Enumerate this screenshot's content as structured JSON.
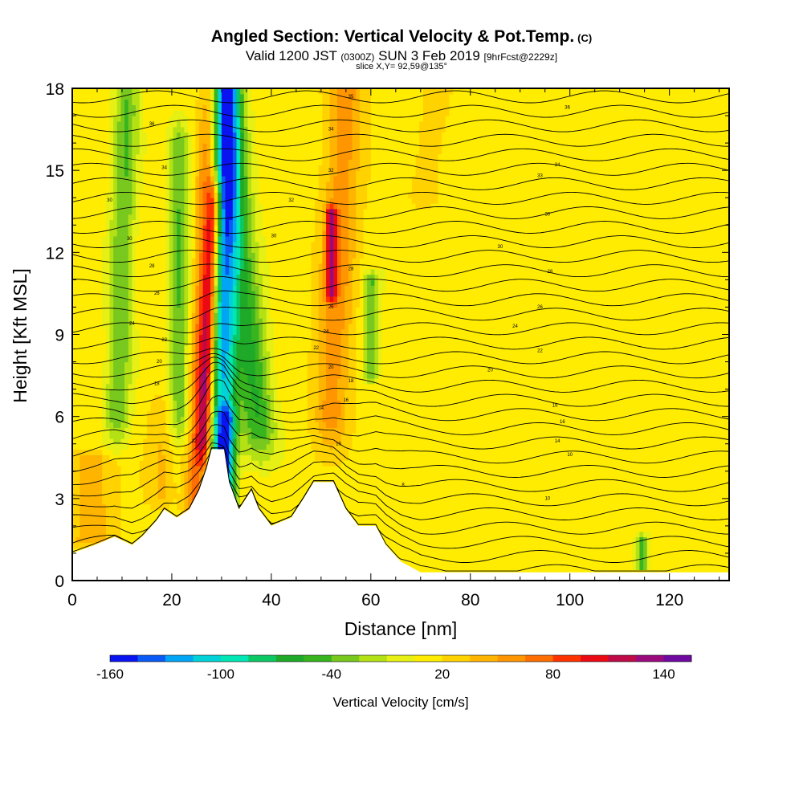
{
  "title": {
    "main": "Angled Section: Vertical Velocity & Pot.Temp.",
    "main_suffix": "(C)",
    "valid_prefix": "Valid 1200 JST",
    "valid_zulu": "(0300Z)",
    "valid_date": "SUN 3 Feb 2019",
    "valid_fcst": "[9hrFcst@2229z]",
    "slice": "slice X,Y= 92,59@135°"
  },
  "chart_data": {
    "type": "heatmap",
    "xlabel": "Distance [nm]",
    "ylabel": "Height [Kft MSL]",
    "xlim": [
      0,
      132
    ],
    "ylim": [
      0,
      18
    ],
    "x_ticks": [
      "0",
      "20",
      "40",
      "60",
      "80",
      "100",
      "120"
    ],
    "y_ticks": [
      "0",
      "3",
      "6",
      "9",
      "12",
      "15",
      "18"
    ],
    "colorbar": {
      "label": "Vertical Velocity [cm/s]",
      "tick_labels": [
        "-160",
        "-100",
        "-40",
        "20",
        "80",
        "140"
      ],
      "bins": [
        -160,
        -145,
        -130,
        -115,
        -100,
        -85,
        -70,
        -55,
        -40,
        -25,
        -10,
        5,
        20,
        35,
        50,
        65,
        80,
        95,
        110,
        125,
        140,
        155
      ],
      "colors": [
        "#0a14f0",
        "#0a5af5",
        "#00a5f5",
        "#00d2d7",
        "#00e6b4",
        "#0cc864",
        "#1eaa28",
        "#37b41e",
        "#78c81e",
        "#b4e114",
        "#e6f014",
        "#ffec00",
        "#ffd200",
        "#ffb400",
        "#ff9600",
        "#ff6e00",
        "#ff3200",
        "#eb0a14",
        "#be0a46",
        "#9b0a7d",
        "#6e0aa0"
      ]
    },
    "velocity_features": [
      {
        "kind": "downdraft",
        "x_center": 30,
        "x_at_top": 31,
        "half_width": 2.6,
        "y_from": 1.8,
        "y_to": 18,
        "value": -110
      },
      {
        "kind": "downdraft",
        "x_center": 37.5,
        "x_at_top": 30.5,
        "half_width": 3.5,
        "y_from": 5.5,
        "y_to": 18,
        "value": -55
      },
      {
        "kind": "downdraft",
        "x_center": 9,
        "x_at_top": 11,
        "half_width": 2.5,
        "y_from": 6,
        "y_to": 18,
        "value": -40
      },
      {
        "kind": "downdraft",
        "x_center": 21.5,
        "x_at_top": 21.5,
        "half_width": 2.2,
        "y_from": 6,
        "y_to": 16,
        "value": -40
      },
      {
        "kind": "downdraft",
        "x_center": 30,
        "x_at_top": 31,
        "half_width": 1.8,
        "y_from": 2,
        "y_to": 6,
        "value": -55
      },
      {
        "kind": "downdraft",
        "x_center": 60,
        "x_at_top": 60,
        "half_width": 1.6,
        "y_from": 7.5,
        "y_to": 11,
        "value": -40
      },
      {
        "kind": "downdraft",
        "x_center": 114.5,
        "x_at_top": 114.5,
        "half_width": 1.2,
        "y_from": 0.5,
        "y_to": 1.6,
        "value": -45
      },
      {
        "kind": "updraft",
        "x_center": 24.5,
        "x_at_top": 28,
        "half_width": 2.2,
        "y_from": 2,
        "y_to": 18,
        "value": 75
      },
      {
        "kind": "updraft",
        "x_center": 26.5,
        "x_at_top": 28.5,
        "half_width": 1.4,
        "y_from": 5,
        "y_to": 14,
        "value": 95
      },
      {
        "kind": "updraft",
        "x_center": 52,
        "x_at_top": 55,
        "half_width": 3.5,
        "y_from": 6,
        "y_to": 18,
        "value": 60
      },
      {
        "kind": "updraft",
        "x_center": 52,
        "x_at_top": 52,
        "half_width": 1.0,
        "y_from": 10.5,
        "y_to": 13.5,
        "value": 95
      },
      {
        "kind": "updraft",
        "x_center": 4,
        "x_at_top": 4,
        "half_width": 4.5,
        "y_from": 1.5,
        "y_to": 4.5,
        "value": 45
      },
      {
        "kind": "updraft",
        "x_center": 18,
        "x_at_top": 18,
        "half_width": 2.5,
        "y_from": 3,
        "y_to": 6.5,
        "value": 35
      },
      {
        "kind": "updraft",
        "x_center": 71,
        "x_at_top": 73,
        "half_width": 3,
        "y_from": 14,
        "y_to": 18,
        "value": 35
      }
    ],
    "terrain_kft": [
      {
        "x": 0,
        "h": 1.0
      },
      {
        "x": 4.5,
        "h": 1.3
      },
      {
        "x": 8.5,
        "h": 1.6
      },
      {
        "x": 12,
        "h": 1.3
      },
      {
        "x": 14,
        "h": 1.6
      },
      {
        "x": 17,
        "h": 2.2
      },
      {
        "x": 18.5,
        "h": 2.6
      },
      {
        "x": 21,
        "h": 2.3
      },
      {
        "x": 23.5,
        "h": 2.6
      },
      {
        "x": 25.5,
        "h": 3.3
      },
      {
        "x": 27,
        "h": 4.1
      },
      {
        "x": 28,
        "h": 4.8
      },
      {
        "x": 30.5,
        "h": 4.8
      },
      {
        "x": 31.5,
        "h": 3.6
      },
      {
        "x": 33.5,
        "h": 2.6
      },
      {
        "x": 36,
        "h": 3.3
      },
      {
        "x": 37.5,
        "h": 2.6
      },
      {
        "x": 40,
        "h": 2.0
      },
      {
        "x": 44,
        "h": 2.3
      },
      {
        "x": 46.5,
        "h": 3.0
      },
      {
        "x": 48.5,
        "h": 3.6
      },
      {
        "x": 52.5,
        "h": 3.6
      },
      {
        "x": 55,
        "h": 2.6
      },
      {
        "x": 57.5,
        "h": 2.0
      },
      {
        "x": 61,
        "h": 2.0
      },
      {
        "x": 63,
        "h": 1.3
      },
      {
        "x": 66,
        "h": 0.7
      },
      {
        "x": 70,
        "h": 0.3
      },
      {
        "x": 132,
        "h": 0.3
      }
    ],
    "isentrope_labels": [
      {
        "x": 56,
        "y": 17.7,
        "text": "35"
      },
      {
        "x": 99.5,
        "y": 17.3,
        "text": "36"
      },
      {
        "x": 16,
        "y": 16.7,
        "text": "36"
      },
      {
        "x": 52,
        "y": 16.5,
        "text": "34"
      },
      {
        "x": 97.5,
        "y": 15.2,
        "text": "34"
      },
      {
        "x": 52,
        "y": 15.0,
        "text": "32"
      },
      {
        "x": 18.5,
        "y": 15.1,
        "text": "34"
      },
      {
        "x": 44,
        "y": 13.9,
        "text": "32"
      },
      {
        "x": 94,
        "y": 14.8,
        "text": "33"
      },
      {
        "x": 7.5,
        "y": 13.9,
        "text": "30"
      },
      {
        "x": 95.5,
        "y": 13.4,
        "text": "30"
      },
      {
        "x": 86,
        "y": 12.2,
        "text": "30"
      },
      {
        "x": 11.5,
        "y": 12.5,
        "text": "30"
      },
      {
        "x": 40.5,
        "y": 12.6,
        "text": "30"
      },
      {
        "x": 56,
        "y": 11.4,
        "text": "28"
      },
      {
        "x": 16,
        "y": 11.5,
        "text": "28"
      },
      {
        "x": 96,
        "y": 11.3,
        "text": "28"
      },
      {
        "x": 17,
        "y": 10.5,
        "text": "26"
      },
      {
        "x": 52,
        "y": 10.0,
        "text": "26"
      },
      {
        "x": 94,
        "y": 10.0,
        "text": "26"
      },
      {
        "x": 12,
        "y": 9.4,
        "text": "24"
      },
      {
        "x": 89,
        "y": 9.3,
        "text": "24"
      },
      {
        "x": 51,
        "y": 9.1,
        "text": "24"
      },
      {
        "x": 18.5,
        "y": 8.8,
        "text": "22"
      },
      {
        "x": 49,
        "y": 8.5,
        "text": "22"
      },
      {
        "x": 94,
        "y": 8.4,
        "text": "22"
      },
      {
        "x": 17.5,
        "y": 8.0,
        "text": "20"
      },
      {
        "x": 52,
        "y": 7.8,
        "text": "20"
      },
      {
        "x": 84,
        "y": 7.7,
        "text": "20"
      },
      {
        "x": 17,
        "y": 7.2,
        "text": "18"
      },
      {
        "x": 56,
        "y": 7.3,
        "text": "18"
      },
      {
        "x": 55,
        "y": 6.6,
        "text": "16"
      },
      {
        "x": 97,
        "y": 6.4,
        "text": "16"
      },
      {
        "x": 50,
        "y": 6.3,
        "text": "14"
      },
      {
        "x": 98.5,
        "y": 5.8,
        "text": "16"
      },
      {
        "x": 97.5,
        "y": 5.1,
        "text": "14"
      },
      {
        "x": 24.5,
        "y": 5.1,
        "text": "12"
      },
      {
        "x": 53.5,
        "y": 5.0,
        "text": "10"
      },
      {
        "x": 100,
        "y": 4.6,
        "text": "10"
      },
      {
        "x": 66.5,
        "y": 3.5,
        "text": "8"
      },
      {
        "x": 95.5,
        "y": 3.0,
        "text": "10"
      }
    ]
  }
}
